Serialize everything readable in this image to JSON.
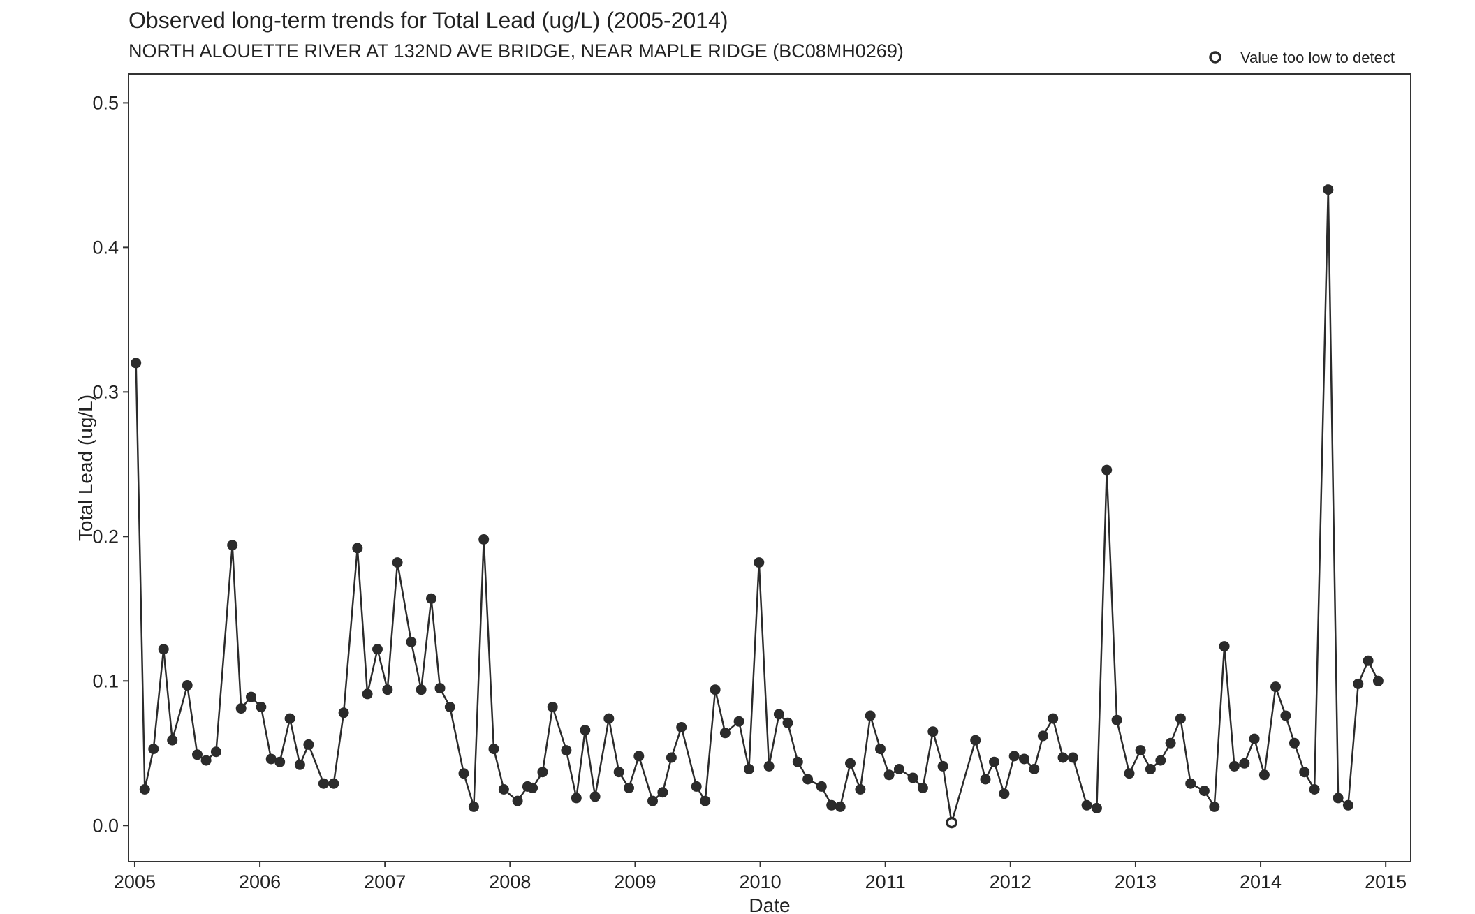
{
  "chart_data": {
    "type": "scatter",
    "title": "Observed long-term trends for Total Lead (ug/L) (2005-2014)",
    "subtitle": "NORTH ALOUETTE RIVER AT 132ND AVE BRIDGE, NEAR MAPLE RIDGE (BC08MH0269)",
    "xlabel": "Date",
    "ylabel": "Total Lead (ug/L)",
    "xlim": [
      2004.95,
      2015.2
    ],
    "ylim": [
      -0.025,
      0.52
    ],
    "x_ticks": [
      2005,
      2006,
      2007,
      2008,
      2009,
      2010,
      2011,
      2012,
      2013,
      2014,
      2015
    ],
    "x_tick_labels": [
      "2005",
      "2006",
      "2007",
      "2008",
      "2009",
      "2010",
      "2011",
      "2012",
      "2013",
      "2014",
      "2015"
    ],
    "y_ticks": [
      0.0,
      0.1,
      0.2,
      0.3,
      0.4,
      0.5
    ],
    "y_tick_labels": [
      "0.0",
      "0.1",
      "0.2",
      "0.3",
      "0.4",
      "0.5"
    ],
    "grid": false,
    "legend": {
      "placement": "top-right",
      "entries": [
        {
          "label": "Value too low to detect",
          "marker": "open-circle"
        }
      ]
    },
    "colors": {
      "series": "#2b2b2b"
    },
    "series": [
      {
        "x": [
          2005.01,
          2005.08,
          2005.15,
          2005.23,
          2005.3,
          2005.42,
          2005.5,
          2005.57,
          2005.65,
          2005.78,
          2005.85,
          2005.93,
          2006.01,
          2006.09,
          2006.16,
          2006.24,
          2006.32,
          2006.39,
          2006.51,
          2006.59,
          2006.67,
          2006.78,
          2006.86,
          2006.94,
          2007.02,
          2007.1,
          2007.21,
          2007.29,
          2007.37,
          2007.44,
          2007.52,
          2007.63,
          2007.71,
          2007.79,
          2007.87,
          2007.95,
          2008.06,
          2008.14,
          2008.18,
          2008.26,
          2008.34,
          2008.45,
          2008.53,
          2008.6,
          2008.68,
          2008.79,
          2008.87,
          2008.95,
          2009.03,
          2009.14,
          2009.22,
          2009.29,
          2009.37,
          2009.49,
          2009.56,
          2009.64,
          2009.72,
          2009.83,
          2009.91,
          2009.99,
          2010.07,
          2010.15,
          2010.22,
          2010.3,
          2010.38,
          2010.49,
          2010.57,
          2010.64,
          2010.72,
          2010.8,
          2010.88,
          2010.96,
          2011.03,
          2011.11,
          2011.22,
          2011.3,
          2011.38,
          2011.46,
          2011.53,
          2011.72,
          2011.8,
          2011.87,
          2011.95,
          2012.03,
          2012.11,
          2012.19,
          2012.26,
          2012.34,
          2012.42,
          2012.5,
          2012.61,
          2012.69,
          2012.77,
          2012.85,
          2012.95,
          2013.04,
          2013.12,
          2013.2,
          2013.28,
          2013.36,
          2013.44,
          2013.55,
          2013.63,
          2013.71,
          2013.79,
          2013.87,
          2013.95,
          2014.03,
          2014.12,
          2014.2,
          2014.27,
          2014.35,
          2014.43,
          2014.54,
          2014.62,
          2014.7,
          2014.78,
          2014.86,
          2014.94
        ],
        "y": [
          0.32,
          0.025,
          0.053,
          0.122,
          0.059,
          0.097,
          0.049,
          0.045,
          0.051,
          0.194,
          0.081,
          0.089,
          0.082,
          0.046,
          0.044,
          0.074,
          0.042,
          0.056,
          0.029,
          0.029,
          0.078,
          0.192,
          0.091,
          0.122,
          0.094,
          0.182,
          0.127,
          0.094,
          0.157,
          0.095,
          0.082,
          0.036,
          0.013,
          0.198,
          0.053,
          0.025,
          0.017,
          0.027,
          0.026,
          0.037,
          0.082,
          0.052,
          0.019,
          0.066,
          0.02,
          0.074,
          0.037,
          0.026,
          0.048,
          0.017,
          0.023,
          0.047,
          0.068,
          0.027,
          0.017,
          0.094,
          0.064,
          0.072,
          0.039,
          0.182,
          0.041,
          0.077,
          0.071,
          0.044,
          0.032,
          0.027,
          0.014,
          0.013,
          0.043,
          0.025,
          0.076,
          0.053,
          0.035,
          0.039,
          0.033,
          0.026,
          0.065,
          0.041,
          0.002,
          0.059,
          0.032,
          0.044,
          0.022,
          0.048,
          0.046,
          0.039,
          0.062,
          0.074,
          0.047,
          0.047,
          0.014,
          0.012,
          0.246,
          0.073,
          0.036,
          0.052,
          0.039,
          0.045,
          0.057,
          0.074,
          0.029,
          0.024,
          0.013,
          0.124,
          0.041,
          0.043,
          0.06,
          0.035,
          0.096,
          0.076,
          0.057,
          0.037,
          0.025,
          0.44,
          0.019,
          0.014,
          0.098,
          0.114,
          0.1
        ],
        "below_detection": [
          false,
          false,
          false,
          false,
          false,
          false,
          false,
          false,
          false,
          false,
          false,
          false,
          false,
          false,
          false,
          false,
          false,
          false,
          false,
          false,
          false,
          false,
          false,
          false,
          false,
          false,
          false,
          false,
          false,
          false,
          false,
          false,
          false,
          false,
          false,
          false,
          false,
          false,
          false,
          false,
          false,
          false,
          false,
          false,
          false,
          false,
          false,
          false,
          false,
          false,
          false,
          false,
          false,
          false,
          false,
          false,
          false,
          false,
          false,
          false,
          false,
          false,
          false,
          false,
          false,
          false,
          false,
          false,
          false,
          false,
          false,
          false,
          false,
          false,
          false,
          false,
          false,
          false,
          true,
          false,
          false,
          false,
          false,
          false,
          false,
          false,
          false,
          false,
          false,
          false,
          false,
          false,
          false,
          false,
          false,
          false,
          false,
          false,
          false,
          false,
          false,
          false,
          false,
          false,
          false,
          false,
          false,
          false,
          false,
          false,
          false,
          false,
          false,
          false,
          false,
          false,
          false,
          false,
          false
        ]
      }
    ]
  }
}
